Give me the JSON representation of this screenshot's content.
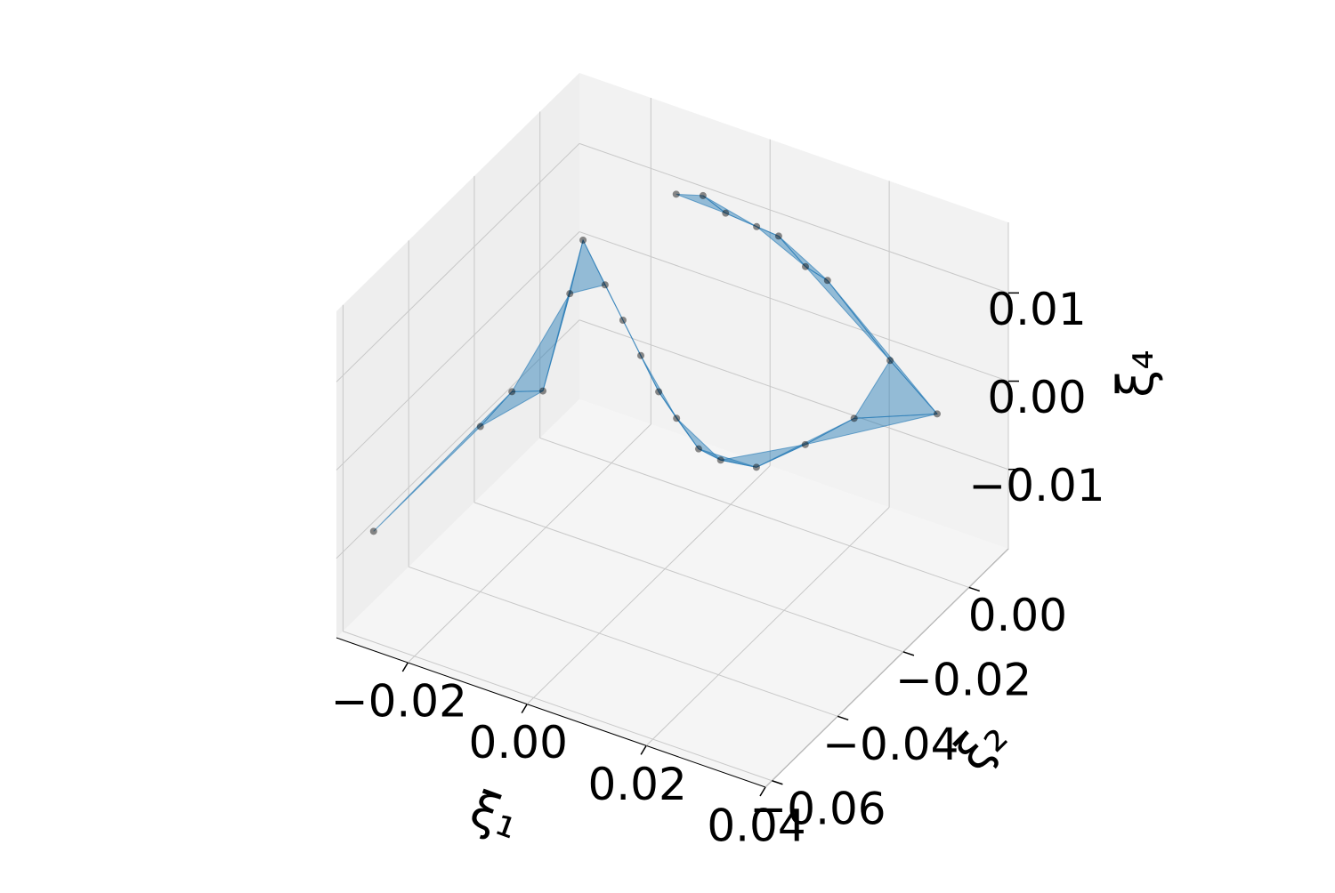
{
  "chart_data": {
    "type": "scatter3d",
    "xlabel": "ξ₁",
    "ylabel": "ξ₂",
    "zlabel": "ξ₄",
    "xlim": [
      -0.032,
      0.04
    ],
    "ylim": [
      -0.062,
      0.012
    ],
    "zlim": [
      -0.019,
      0.018
    ],
    "xticks": [
      {
        "value": -0.02,
        "label": "−0.02"
      },
      {
        "value": 0,
        "label": "0.00"
      },
      0.02,
      0.04
    ],
    "yticks": [
      {
        "value": -0.06,
        "label": "−0.06"
      },
      {
        "value": -0.04,
        "label": "−0.04"
      },
      {
        "value": -0.02,
        "label": "−0.02"
      },
      {
        "value": 0,
        "label": "0.00"
      }
    ],
    "zticks": [
      {
        "value": -0.01,
        "label": "−0.01"
      },
      {
        "value": 0,
        "label": "0.00"
      },
      0.01
    ],
    "grid": true,
    "surface_color": "#1f77b4",
    "series": [
      {
        "color": "#000000",
        "x": [
          -0.0278,
          -0.016,
          -0.0107,
          -0.0055,
          -0.0071,
          -0.011,
          -0.0073,
          -0.0043,
          -0.0013,
          0.0017,
          0.0047,
          0.0084,
          0.0121,
          0.0181,
          0.0263,
          0.0345,
          0.0362,
          0.0283,
          0.0178,
          0.0141,
          0.0096,
          0.0059,
          0.0007,
          -0.0031,
          -0.0076
        ],
        "y": [
          -0.0583,
          -0.0472,
          -0.0472,
          -0.0472,
          -0.0361,
          -0.025,
          -0.025,
          -0.025,
          -0.025,
          -0.025,
          -0.025,
          -0.025,
          -0.025,
          -0.025,
          -0.025,
          -0.025,
          -0.0028,
          -0.0028,
          -0.0028,
          -0.0028,
          -0.0028,
          -0.0028,
          -0.0028,
          -0.0028,
          -0.0028
        ],
        "z": [
          -0.0073,
          0.0033,
          0.0085,
          0.0098,
          0.0164,
          0.0175,
          0.0133,
          0.01,
          0.0067,
          0.0033,
          0.001,
          -0.0016,
          -0.002,
          -0.0014,
          0.0031,
          0.008,
          0.0008,
          0.005,
          0.0116,
          0.0123,
          0.0147,
          0.0149,
          0.0152,
          0.0163,
          0.0154
        ]
      }
    ]
  }
}
